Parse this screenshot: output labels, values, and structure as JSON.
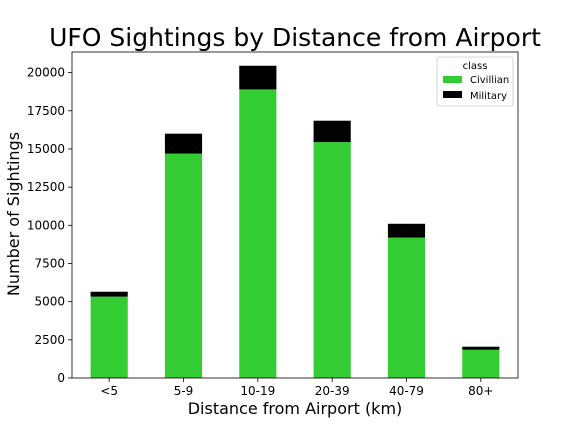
{
  "chart_data": {
    "type": "bar",
    "stacked": true,
    "title": "UFO Sightings by Distance from Airport",
    "xlabel": "Distance from Airport (km)",
    "ylabel": "Number of Sightings",
    "categories": [
      "<5",
      "5-9",
      "10-19",
      "20-39",
      "40-79",
      "80+"
    ],
    "series": [
      {
        "name": "Civillian",
        "color": "#33cc33",
        "values": [
          5330,
          14700,
          18900,
          15450,
          9200,
          1850
        ]
      },
      {
        "name": "Military",
        "color": "#000000",
        "values": [
          320,
          1300,
          1550,
          1400,
          900,
          200
        ]
      }
    ],
    "ylim": [
      0,
      21350
    ],
    "yticks": [
      0,
      2500,
      5000,
      7500,
      10000,
      12500,
      15000,
      17500,
      20000
    ],
    "grid": false,
    "legend": {
      "title": "class",
      "placement": "top-right"
    }
  }
}
